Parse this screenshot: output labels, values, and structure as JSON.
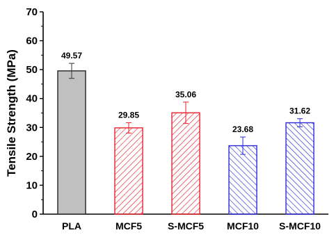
{
  "chart_data": {
    "type": "bar",
    "title": "",
    "xlabel": "",
    "ylabel": "Tensile Strength (MPa)",
    "ylim": [
      0,
      70
    ],
    "yticks": [
      0,
      10,
      20,
      30,
      40,
      50,
      60,
      70
    ],
    "categories": [
      "PLA",
      "MCF5",
      "S-MCF5",
      "MCF10",
      "S-MCF10"
    ],
    "values": [
      49.57,
      29.85,
      35.06,
      23.68,
      31.62
    ],
    "value_labels": [
      "49.57",
      "29.85",
      "35.06",
      "23.68",
      "31.62"
    ],
    "errors": [
      2.6,
      1.8,
      3.7,
      3.0,
      1.4
    ],
    "styles": [
      {
        "fill": "#c0c0c0",
        "stroke": "#222222",
        "pattern": "solid",
        "error_color": "#333333"
      },
      {
        "fill": "#ffffff",
        "stroke": "#e8202a",
        "pattern": "hatch",
        "error_color": "#e8202a"
      },
      {
        "fill": "#ffffff",
        "stroke": "#e8202a",
        "pattern": "hatch",
        "error_color": "#e8202a"
      },
      {
        "fill": "#ffffff",
        "stroke": "#2a2ad8",
        "pattern": "hatch",
        "error_color": "#2a2ad8"
      },
      {
        "fill": "#ffffff",
        "stroke": "#2a2ad8",
        "pattern": "hatch",
        "error_color": "#2a2ad8"
      }
    ],
    "grid": false,
    "legend": "none"
  }
}
